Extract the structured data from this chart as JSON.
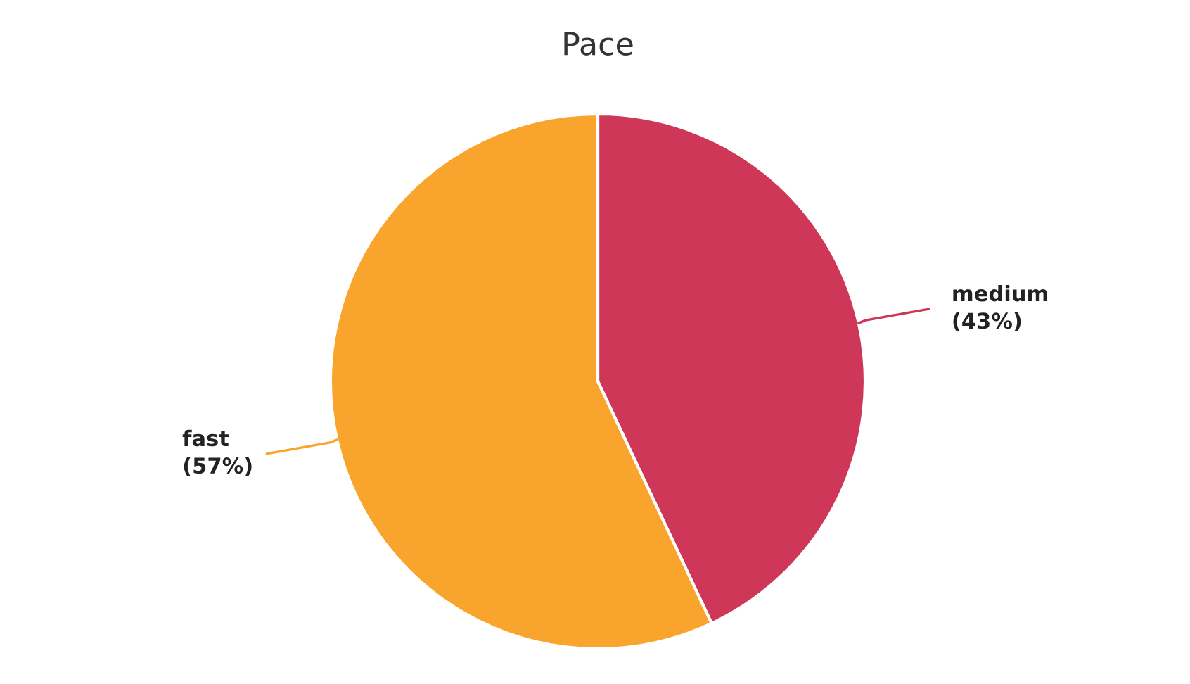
{
  "chart_data": {
    "type": "pie",
    "title": "Pace",
    "categories": [
      "medium",
      "fast"
    ],
    "values": [
      43,
      57
    ],
    "value_labels": [
      "(43%)",
      "(57%)"
    ],
    "colors": [
      "#cf3759",
      "#f9a52d"
    ],
    "legend": false
  }
}
